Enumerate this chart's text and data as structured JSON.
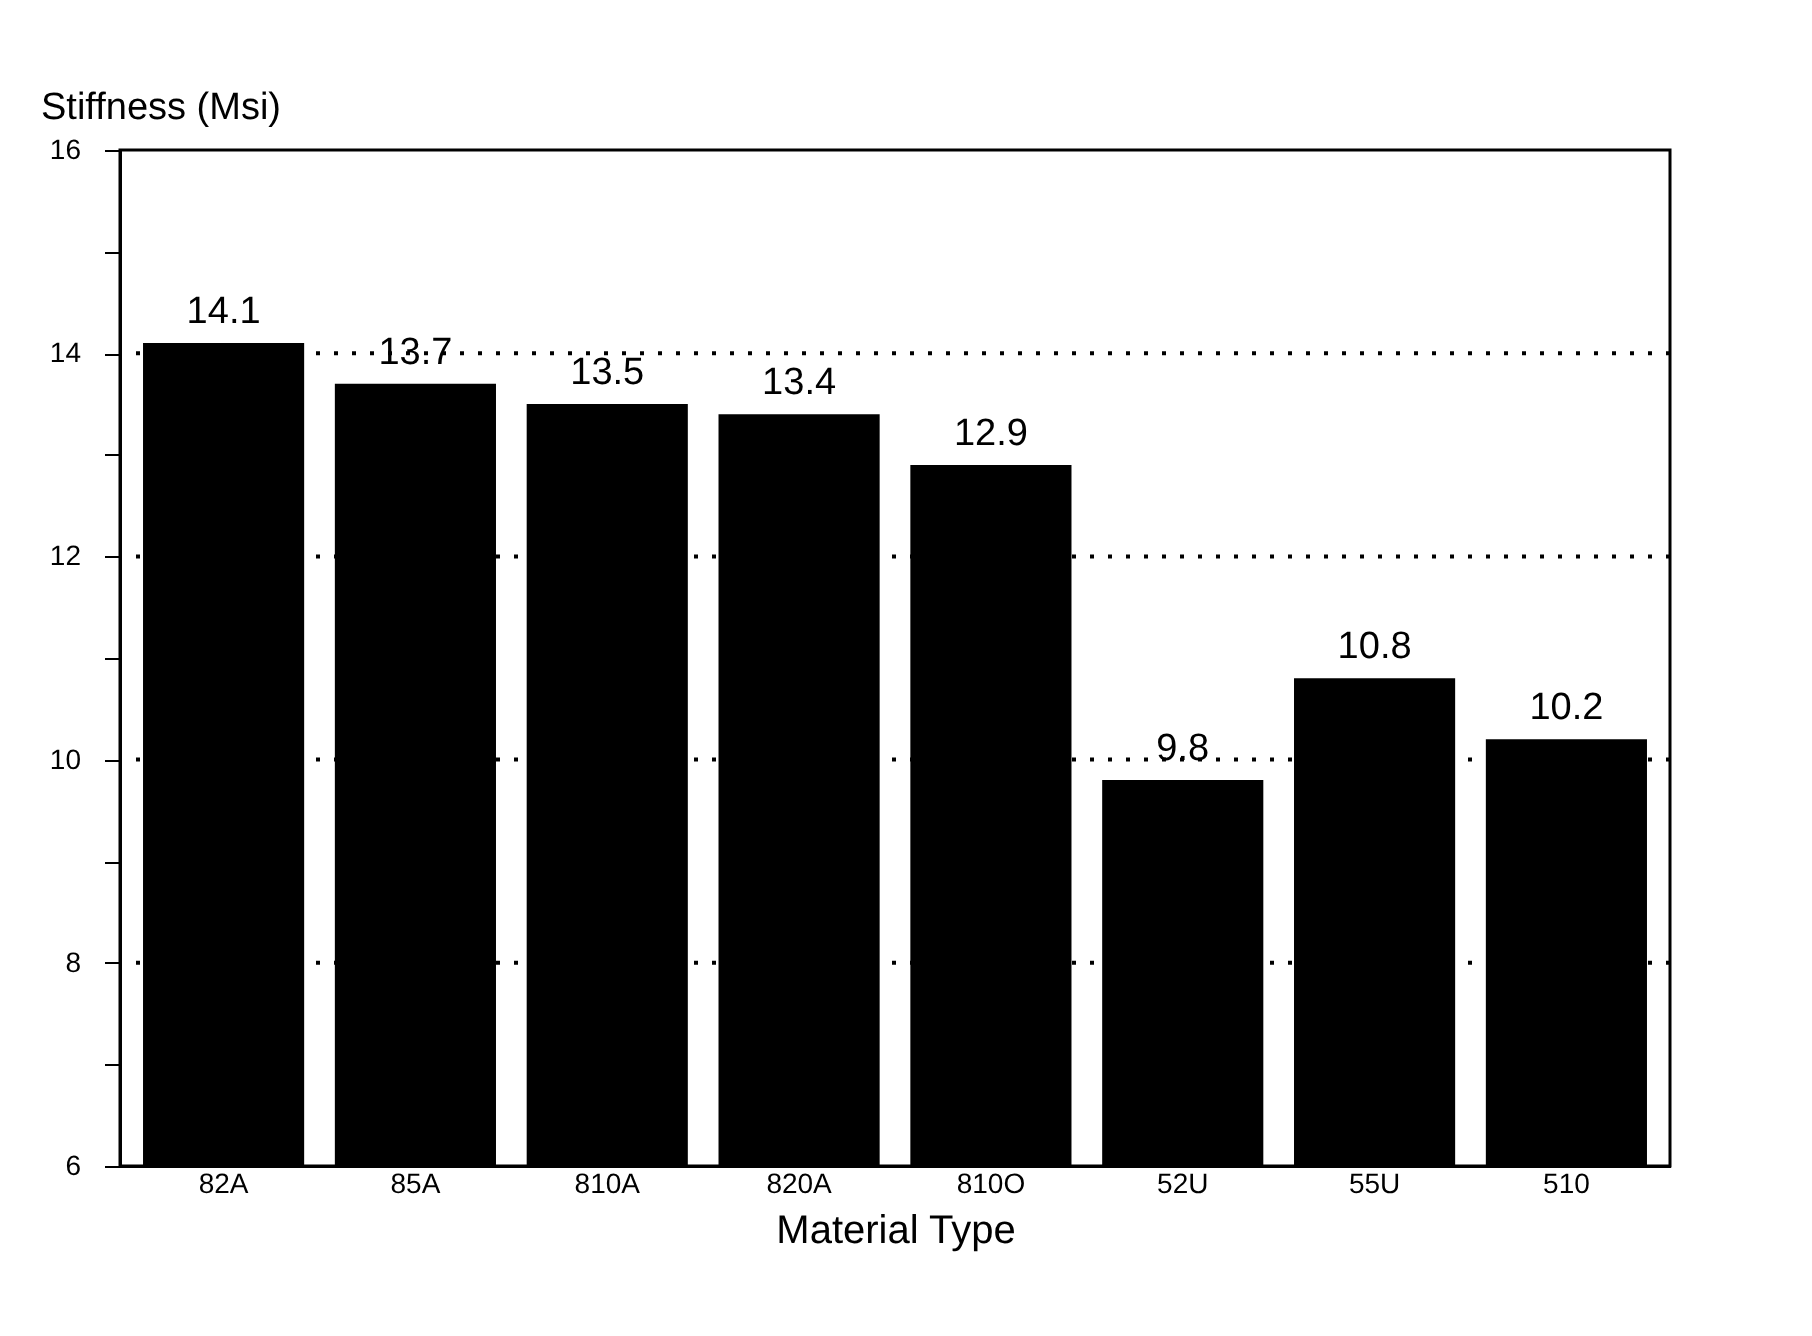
{
  "chart_data": {
    "type": "bar",
    "xlabel": "Material Type",
    "ylabel": "Stiffness (Msi)",
    "categories": [
      "82A",
      "85A",
      "810A",
      "820A",
      "810O",
      "52U",
      "55U",
      "510"
    ],
    "values": [
      14.1,
      13.7,
      13.5,
      13.4,
      12.9,
      9.8,
      10.8,
      10.2
    ],
    "data_labels": true,
    "color": "#000000",
    "ylim": [
      6,
      16
    ],
    "yticks": [
      6,
      {
        "value": 7,
        "label": null
      },
      8,
      {
        "value": 9,
        "label": null
      },
      10,
      {
        "value": 11,
        "label": null
      },
      12,
      {
        "value": 13,
        "label": null
      },
      14,
      {
        "value": 15,
        "label": null
      },
      16
    ],
    "grid": "y"
  }
}
